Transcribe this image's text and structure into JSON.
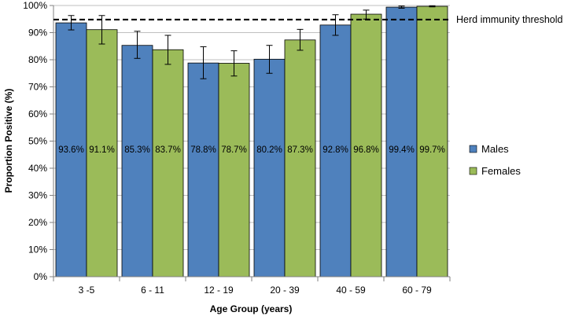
{
  "chart_data": {
    "type": "bar",
    "title": "",
    "xlabel": "Age Group (years)",
    "ylabel": "Proportion Positive (%)",
    "ylim": [
      0,
      100
    ],
    "yticks": [
      0,
      10,
      20,
      30,
      40,
      50,
      60,
      70,
      80,
      90,
      100
    ],
    "ytick_labels": [
      "0%",
      "10%",
      "20%",
      "30%",
      "40%",
      "50%",
      "60%",
      "70%",
      "80%",
      "90%",
      "100%"
    ],
    "grid": true,
    "legend_position": "right",
    "categories": [
      "3 -5",
      "6 - 11",
      "12 - 19",
      "20 - 39",
      "40 - 59",
      "60 - 79"
    ],
    "series": [
      {
        "name": "Males",
        "color": "#4f81bd",
        "values": [
          93.6,
          85.3,
          78.8,
          80.2,
          92.8,
          99.4
        ],
        "labels": [
          "93.6%",
          "85.3%",
          "78.8%",
          "80.2%",
          "92.8%",
          "99.4%"
        ],
        "error_low": [
          91.0,
          80.5,
          73.0,
          75.0,
          89.0,
          99.0
        ],
        "error_high": [
          96.3,
          90.5,
          84.8,
          85.3,
          96.6,
          99.8
        ]
      },
      {
        "name": "Females",
        "color": "#9bbb59",
        "values": [
          91.1,
          83.7,
          78.7,
          87.3,
          96.8,
          99.7
        ],
        "labels": [
          "91.1%",
          "83.7%",
          "78.7%",
          "87.3%",
          "96.8%",
          "99.7%"
        ],
        "error_low": [
          85.8,
          78.3,
          74.0,
          83.5,
          95.0,
          99.5
        ],
        "error_high": [
          96.3,
          89.0,
          83.3,
          91.2,
          98.3,
          99.9
        ]
      }
    ],
    "threshold": {
      "value": 94.8,
      "label": "Herd immunity threshold"
    }
  }
}
